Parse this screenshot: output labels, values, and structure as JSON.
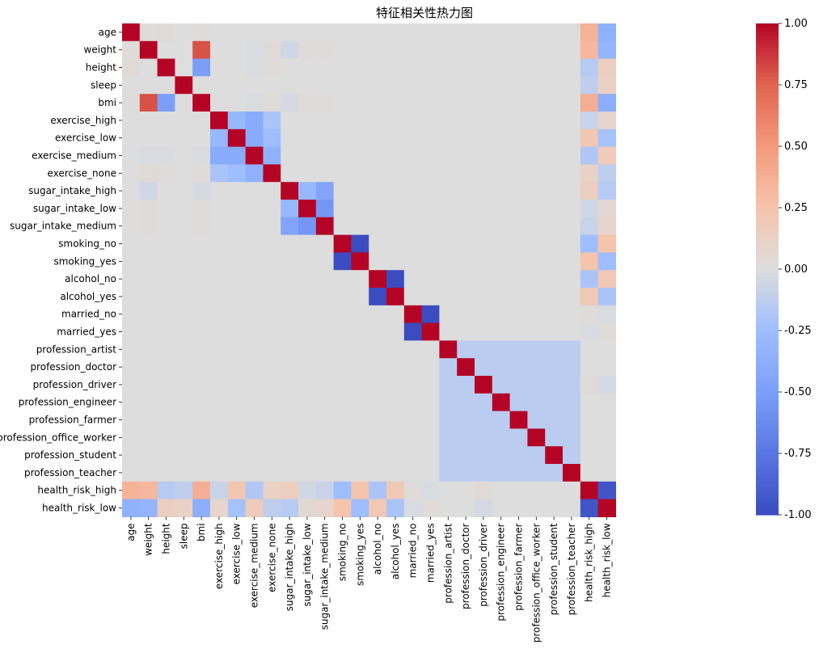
{
  "chart_data": {
    "type": "heatmap",
    "title": "特征相关性热力图",
    "xlabel": "",
    "ylabel": "",
    "labels": [
      "age",
      "weight",
      "height",
      "sleep",
      "bmi",
      "exercise_high",
      "exercise_low",
      "exercise_medium",
      "exercise_none",
      "sugar_intake_high",
      "sugar_intake_low",
      "sugar_intake_medium",
      "smoking_no",
      "smoking_yes",
      "alcohol_no",
      "alcohol_yes",
      "married_no",
      "married_yes",
      "profession_artist",
      "profession_doctor",
      "profession_driver",
      "profession_engineer",
      "profession_farmer",
      "profession_office_worker",
      "profession_student",
      "profession_teacher",
      "health_risk_high",
      "health_risk_low"
    ],
    "colorbar": {
      "vmin": -1.0,
      "vmax": 1.0,
      "ticks": [
        "1.00",
        "0.75",
        "0.50",
        "0.25",
        "0.00",
        "-0.25",
        "-0.50",
        "-0.75",
        "-1.00"
      ],
      "colormap": "coolwarm",
      "colors": {
        "low": "#3b4cc0",
        "mid": "#dddddd",
        "high": "#b40426"
      }
    },
    "values": [
      [
        1.0,
        0.02,
        0.03,
        0.0,
        0.01,
        0.0,
        0.0,
        0.0,
        0.0,
        0.0,
        0.0,
        0.0,
        0.0,
        0.0,
        0.0,
        0.0,
        0.0,
        0.0,
        0.0,
        0.0,
        0.0,
        0.0,
        0.0,
        0.0,
        0.0,
        0.0,
        0.35,
        -0.35
      ],
      [
        0.02,
        1.0,
        0.0,
        0.0,
        0.8,
        0.0,
        0.0,
        -0.02,
        0.03,
        -0.05,
        0.02,
        0.02,
        0.0,
        0.0,
        0.0,
        0.0,
        0.0,
        0.0,
        0.0,
        0.0,
        0.0,
        0.0,
        0.0,
        0.0,
        0.0,
        0.0,
        0.32,
        -0.32
      ],
      [
        0.03,
        0.0,
        1.0,
        0.0,
        -0.5,
        0.0,
        0.0,
        -0.02,
        0.02,
        0.0,
        0.0,
        0.0,
        0.0,
        0.0,
        0.0,
        0.0,
        0.0,
        0.0,
        0.0,
        0.0,
        0.0,
        0.0,
        0.0,
        0.0,
        0.0,
        0.0,
        -0.15,
        0.15
      ],
      [
        0.0,
        0.0,
        0.0,
        1.0,
        0.0,
        0.0,
        0.0,
        0.0,
        0.0,
        0.0,
        0.0,
        0.0,
        0.0,
        0.0,
        0.0,
        0.0,
        0.0,
        0.0,
        0.0,
        0.0,
        0.0,
        0.0,
        0.0,
        0.0,
        0.0,
        0.0,
        -0.12,
        0.12
      ],
      [
        0.01,
        0.8,
        -0.5,
        0.0,
        1.0,
        0.0,
        0.0,
        -0.02,
        0.02,
        -0.03,
        0.02,
        0.02,
        0.0,
        0.0,
        0.0,
        0.0,
        0.0,
        0.0,
        0.0,
        0.0,
        0.0,
        0.0,
        0.0,
        0.0,
        0.0,
        0.0,
        0.38,
        -0.38
      ],
      [
        0.0,
        0.0,
        0.0,
        0.0,
        0.0,
        1.0,
        -0.3,
        -0.4,
        -0.2,
        0.0,
        0.0,
        0.0,
        0.0,
        0.0,
        0.0,
        0.0,
        0.0,
        0.0,
        0.0,
        0.0,
        0.0,
        0.0,
        0.0,
        0.0,
        0.0,
        0.0,
        -0.08,
        0.08
      ],
      [
        0.0,
        0.0,
        0.0,
        0.0,
        0.0,
        -0.3,
        1.0,
        -0.4,
        -0.25,
        0.0,
        0.0,
        0.0,
        0.0,
        0.0,
        0.0,
        0.0,
        0.0,
        0.0,
        0.0,
        0.0,
        0.0,
        0.0,
        0.0,
        0.0,
        0.0,
        0.0,
        0.22,
        -0.22
      ],
      [
        0.0,
        -0.02,
        -0.02,
        0.0,
        -0.02,
        -0.4,
        -0.4,
        1.0,
        -0.35,
        0.0,
        0.0,
        0.0,
        0.0,
        0.0,
        0.0,
        0.0,
        0.0,
        0.0,
        0.0,
        0.0,
        0.0,
        0.0,
        0.0,
        0.0,
        0.0,
        0.0,
        -0.18,
        0.18
      ],
      [
        0.0,
        0.03,
        0.02,
        0.0,
        0.02,
        -0.2,
        -0.25,
        -0.35,
        1.0,
        0.0,
        0.0,
        0.0,
        0.0,
        0.0,
        0.0,
        0.0,
        0.0,
        0.0,
        0.0,
        0.0,
        0.0,
        0.0,
        0.0,
        0.0,
        0.0,
        0.0,
        0.12,
        -0.12
      ],
      [
        0.0,
        -0.05,
        0.0,
        0.0,
        -0.03,
        0.0,
        0.0,
        0.0,
        0.0,
        1.0,
        -0.3,
        -0.45,
        0.0,
        0.0,
        0.0,
        0.0,
        0.0,
        0.0,
        0.0,
        0.0,
        0.0,
        0.0,
        0.0,
        0.0,
        0.0,
        0.0,
        0.15,
        -0.15
      ],
      [
        0.0,
        0.02,
        0.0,
        0.0,
        0.02,
        0.0,
        0.0,
        0.0,
        0.0,
        -0.3,
        1.0,
        -0.55,
        0.0,
        0.0,
        0.0,
        0.0,
        0.0,
        0.0,
        0.0,
        0.0,
        0.0,
        0.0,
        0.0,
        0.0,
        0.0,
        0.0,
        -0.05,
        0.05
      ],
      [
        0.0,
        0.02,
        0.0,
        0.0,
        0.02,
        0.0,
        0.0,
        0.0,
        0.0,
        -0.45,
        -0.55,
        1.0,
        0.0,
        0.0,
        0.0,
        0.0,
        0.0,
        0.0,
        0.0,
        0.0,
        0.0,
        0.0,
        0.0,
        0.0,
        0.0,
        0.0,
        -0.08,
        0.08
      ],
      [
        0.0,
        0.0,
        0.0,
        0.0,
        0.0,
        0.0,
        0.0,
        0.0,
        0.0,
        0.0,
        0.0,
        0.0,
        1.0,
        -1.0,
        0.0,
        0.0,
        0.0,
        0.0,
        0.0,
        0.0,
        0.0,
        0.0,
        0.0,
        0.0,
        0.0,
        0.0,
        -0.25,
        0.25
      ],
      [
        0.0,
        0.0,
        0.0,
        0.0,
        0.0,
        0.0,
        0.0,
        0.0,
        0.0,
        0.0,
        0.0,
        0.0,
        -1.0,
        1.0,
        0.0,
        0.0,
        0.0,
        0.0,
        0.0,
        0.0,
        0.0,
        0.0,
        0.0,
        0.0,
        0.0,
        0.0,
        0.25,
        -0.25
      ],
      [
        0.0,
        0.0,
        0.0,
        0.0,
        0.0,
        0.0,
        0.0,
        0.0,
        0.0,
        0.0,
        0.0,
        0.0,
        0.0,
        0.0,
        1.0,
        -1.0,
        0.0,
        0.0,
        0.0,
        0.0,
        0.0,
        0.0,
        0.0,
        0.0,
        0.0,
        0.0,
        -0.2,
        0.2
      ],
      [
        0.0,
        0.0,
        0.0,
        0.0,
        0.0,
        0.0,
        0.0,
        0.0,
        0.0,
        0.0,
        0.0,
        0.0,
        0.0,
        0.0,
        -1.0,
        1.0,
        0.0,
        0.0,
        0.0,
        0.0,
        0.0,
        0.0,
        0.0,
        0.0,
        0.0,
        0.0,
        0.2,
        -0.2
      ],
      [
        0.0,
        0.0,
        0.0,
        0.0,
        0.0,
        0.0,
        0.0,
        0.0,
        0.0,
        0.0,
        0.0,
        0.0,
        0.0,
        0.0,
        0.0,
        0.0,
        1.0,
        -1.0,
        0.0,
        0.0,
        0.0,
        0.0,
        0.0,
        0.0,
        0.0,
        0.0,
        0.02,
        -0.02
      ],
      [
        0.0,
        0.0,
        0.0,
        0.0,
        0.0,
        0.0,
        0.0,
        0.0,
        0.0,
        0.0,
        0.0,
        0.0,
        0.0,
        0.0,
        0.0,
        0.0,
        -1.0,
        1.0,
        0.0,
        0.0,
        0.0,
        0.0,
        0.0,
        0.0,
        0.0,
        0.0,
        -0.02,
        0.02
      ],
      [
        0.0,
        0.0,
        0.0,
        0.0,
        0.0,
        0.0,
        0.0,
        0.0,
        0.0,
        0.0,
        0.0,
        0.0,
        0.0,
        0.0,
        0.0,
        0.0,
        0.0,
        0.0,
        1.0,
        -0.14,
        -0.14,
        -0.14,
        -0.14,
        -0.14,
        -0.14,
        -0.14,
        0.0,
        0.0
      ],
      [
        0.0,
        0.0,
        0.0,
        0.0,
        0.0,
        0.0,
        0.0,
        0.0,
        0.0,
        0.0,
        0.0,
        0.0,
        0.0,
        0.0,
        0.0,
        0.0,
        0.0,
        0.0,
        -0.14,
        1.0,
        -0.14,
        -0.14,
        -0.14,
        -0.14,
        -0.14,
        -0.14,
        0.0,
        0.0
      ],
      [
        0.0,
        0.0,
        0.0,
        0.0,
        0.0,
        0.0,
        0.0,
        0.0,
        0.0,
        0.0,
        0.0,
        0.0,
        0.0,
        0.0,
        0.0,
        0.0,
        0.0,
        0.0,
        -0.14,
        -0.14,
        1.0,
        -0.14,
        -0.14,
        -0.14,
        -0.14,
        -0.14,
        0.03,
        -0.03
      ],
      [
        0.0,
        0.0,
        0.0,
        0.0,
        0.0,
        0.0,
        0.0,
        0.0,
        0.0,
        0.0,
        0.0,
        0.0,
        0.0,
        0.0,
        0.0,
        0.0,
        0.0,
        0.0,
        -0.14,
        -0.14,
        -0.14,
        1.0,
        -0.14,
        -0.14,
        -0.14,
        -0.14,
        0.0,
        0.0
      ],
      [
        0.0,
        0.0,
        0.0,
        0.0,
        0.0,
        0.0,
        0.0,
        0.0,
        0.0,
        0.0,
        0.0,
        0.0,
        0.0,
        0.0,
        0.0,
        0.0,
        0.0,
        0.0,
        -0.14,
        -0.14,
        -0.14,
        -0.14,
        1.0,
        -0.14,
        -0.14,
        -0.14,
        0.0,
        0.0
      ],
      [
        0.0,
        0.0,
        0.0,
        0.0,
        0.0,
        0.0,
        0.0,
        0.0,
        0.0,
        0.0,
        0.0,
        0.0,
        0.0,
        0.0,
        0.0,
        0.0,
        0.0,
        0.0,
        -0.14,
        -0.14,
        -0.14,
        -0.14,
        -0.14,
        1.0,
        -0.14,
        -0.14,
        0.0,
        0.0
      ],
      [
        0.0,
        0.0,
        0.0,
        0.0,
        0.0,
        0.0,
        0.0,
        0.0,
        0.0,
        0.0,
        0.0,
        0.0,
        0.0,
        0.0,
        0.0,
        0.0,
        0.0,
        0.0,
        -0.14,
        -0.14,
        -0.14,
        -0.14,
        -0.14,
        -0.14,
        1.0,
        -0.14,
        0.0,
        0.0
      ],
      [
        0.0,
        0.0,
        0.0,
        0.0,
        0.0,
        0.0,
        0.0,
        0.0,
        0.0,
        0.0,
        0.0,
        0.0,
        0.0,
        0.0,
        0.0,
        0.0,
        0.0,
        0.0,
        -0.14,
        -0.14,
        -0.14,
        -0.14,
        -0.14,
        -0.14,
        -0.14,
        1.0,
        0.0,
        0.0
      ],
      [
        0.35,
        0.32,
        -0.15,
        -0.12,
        0.38,
        -0.08,
        0.22,
        -0.18,
        0.12,
        0.15,
        -0.05,
        -0.08,
        -0.25,
        0.25,
        -0.2,
        0.2,
        0.02,
        -0.02,
        0.0,
        0.0,
        0.03,
        0.0,
        0.0,
        0.0,
        0.0,
        0.0,
        1.0,
        -0.95
      ],
      [
        -0.35,
        -0.32,
        0.15,
        0.12,
        -0.38,
        0.08,
        -0.22,
        0.18,
        -0.12,
        -0.15,
        0.05,
        0.08,
        0.25,
        -0.25,
        0.2,
        -0.2,
        -0.02,
        0.02,
        0.0,
        0.0,
        -0.03,
        0.0,
        0.0,
        0.0,
        0.0,
        0.0,
        -0.95,
        1.0
      ]
    ]
  }
}
